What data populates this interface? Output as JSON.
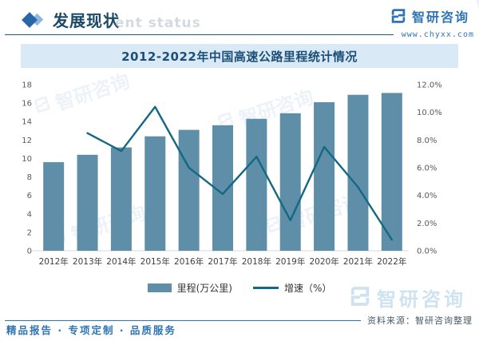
{
  "header": {
    "title": "发展现状",
    "ghost_text": "ent status",
    "brand_name": "智研咨询",
    "website": "www.chyxx.com"
  },
  "banner": {
    "title": "2012-2022年中国高速公路里程统计情况"
  },
  "chart_data": {
    "type": "bar+line",
    "title": "2012-2022年中国高速公路里程统计情况",
    "categories": [
      "2012年",
      "2013年",
      "2014年",
      "2015年",
      "2016年",
      "2017年",
      "2018年",
      "2019年",
      "2020年",
      "2021年",
      "2022年"
    ],
    "series": [
      {
        "name": "里程(万公里)",
        "type": "bar",
        "axis": "left",
        "color": "#5e8ea8",
        "values": [
          9.6,
          10.4,
          11.2,
          12.4,
          13.1,
          13.6,
          14.3,
          14.9,
          16.1,
          16.9,
          17.1
        ]
      },
      {
        "name": "增速（%）",
        "type": "line",
        "axis": "right",
        "color": "#156883",
        "values": [
          null,
          8.5,
          7.2,
          10.4,
          6.0,
          4.1,
          6.8,
          2.2,
          7.5,
          4.6,
          0.8
        ]
      }
    ],
    "left_axis": {
      "min": 0,
      "max": 18,
      "step": 2,
      "labels": [
        "0",
        "2",
        "4",
        "6",
        "8",
        "10",
        "12",
        "14",
        "16",
        "18"
      ]
    },
    "right_axis": {
      "min": 0,
      "max": 12,
      "step": 2,
      "labels": [
        "0.0%",
        "2.0%",
        "4.0%",
        "6.0%",
        "8.0%",
        "10.0%",
        "12.0%"
      ]
    },
    "grid": false,
    "legend_position": "bottom"
  },
  "footer": {
    "source": "资料来源：智研咨询整理",
    "tagline": "精品报告 · 专项定制 · 品质服务"
  },
  "watermark": {
    "brand": "智研咨询"
  },
  "colors": {
    "bar": "#5e8ea8",
    "line": "#156883",
    "banner_bg": "#d9eaf6",
    "accent_blue": "#2e74b5",
    "axis_text": "#595959"
  }
}
